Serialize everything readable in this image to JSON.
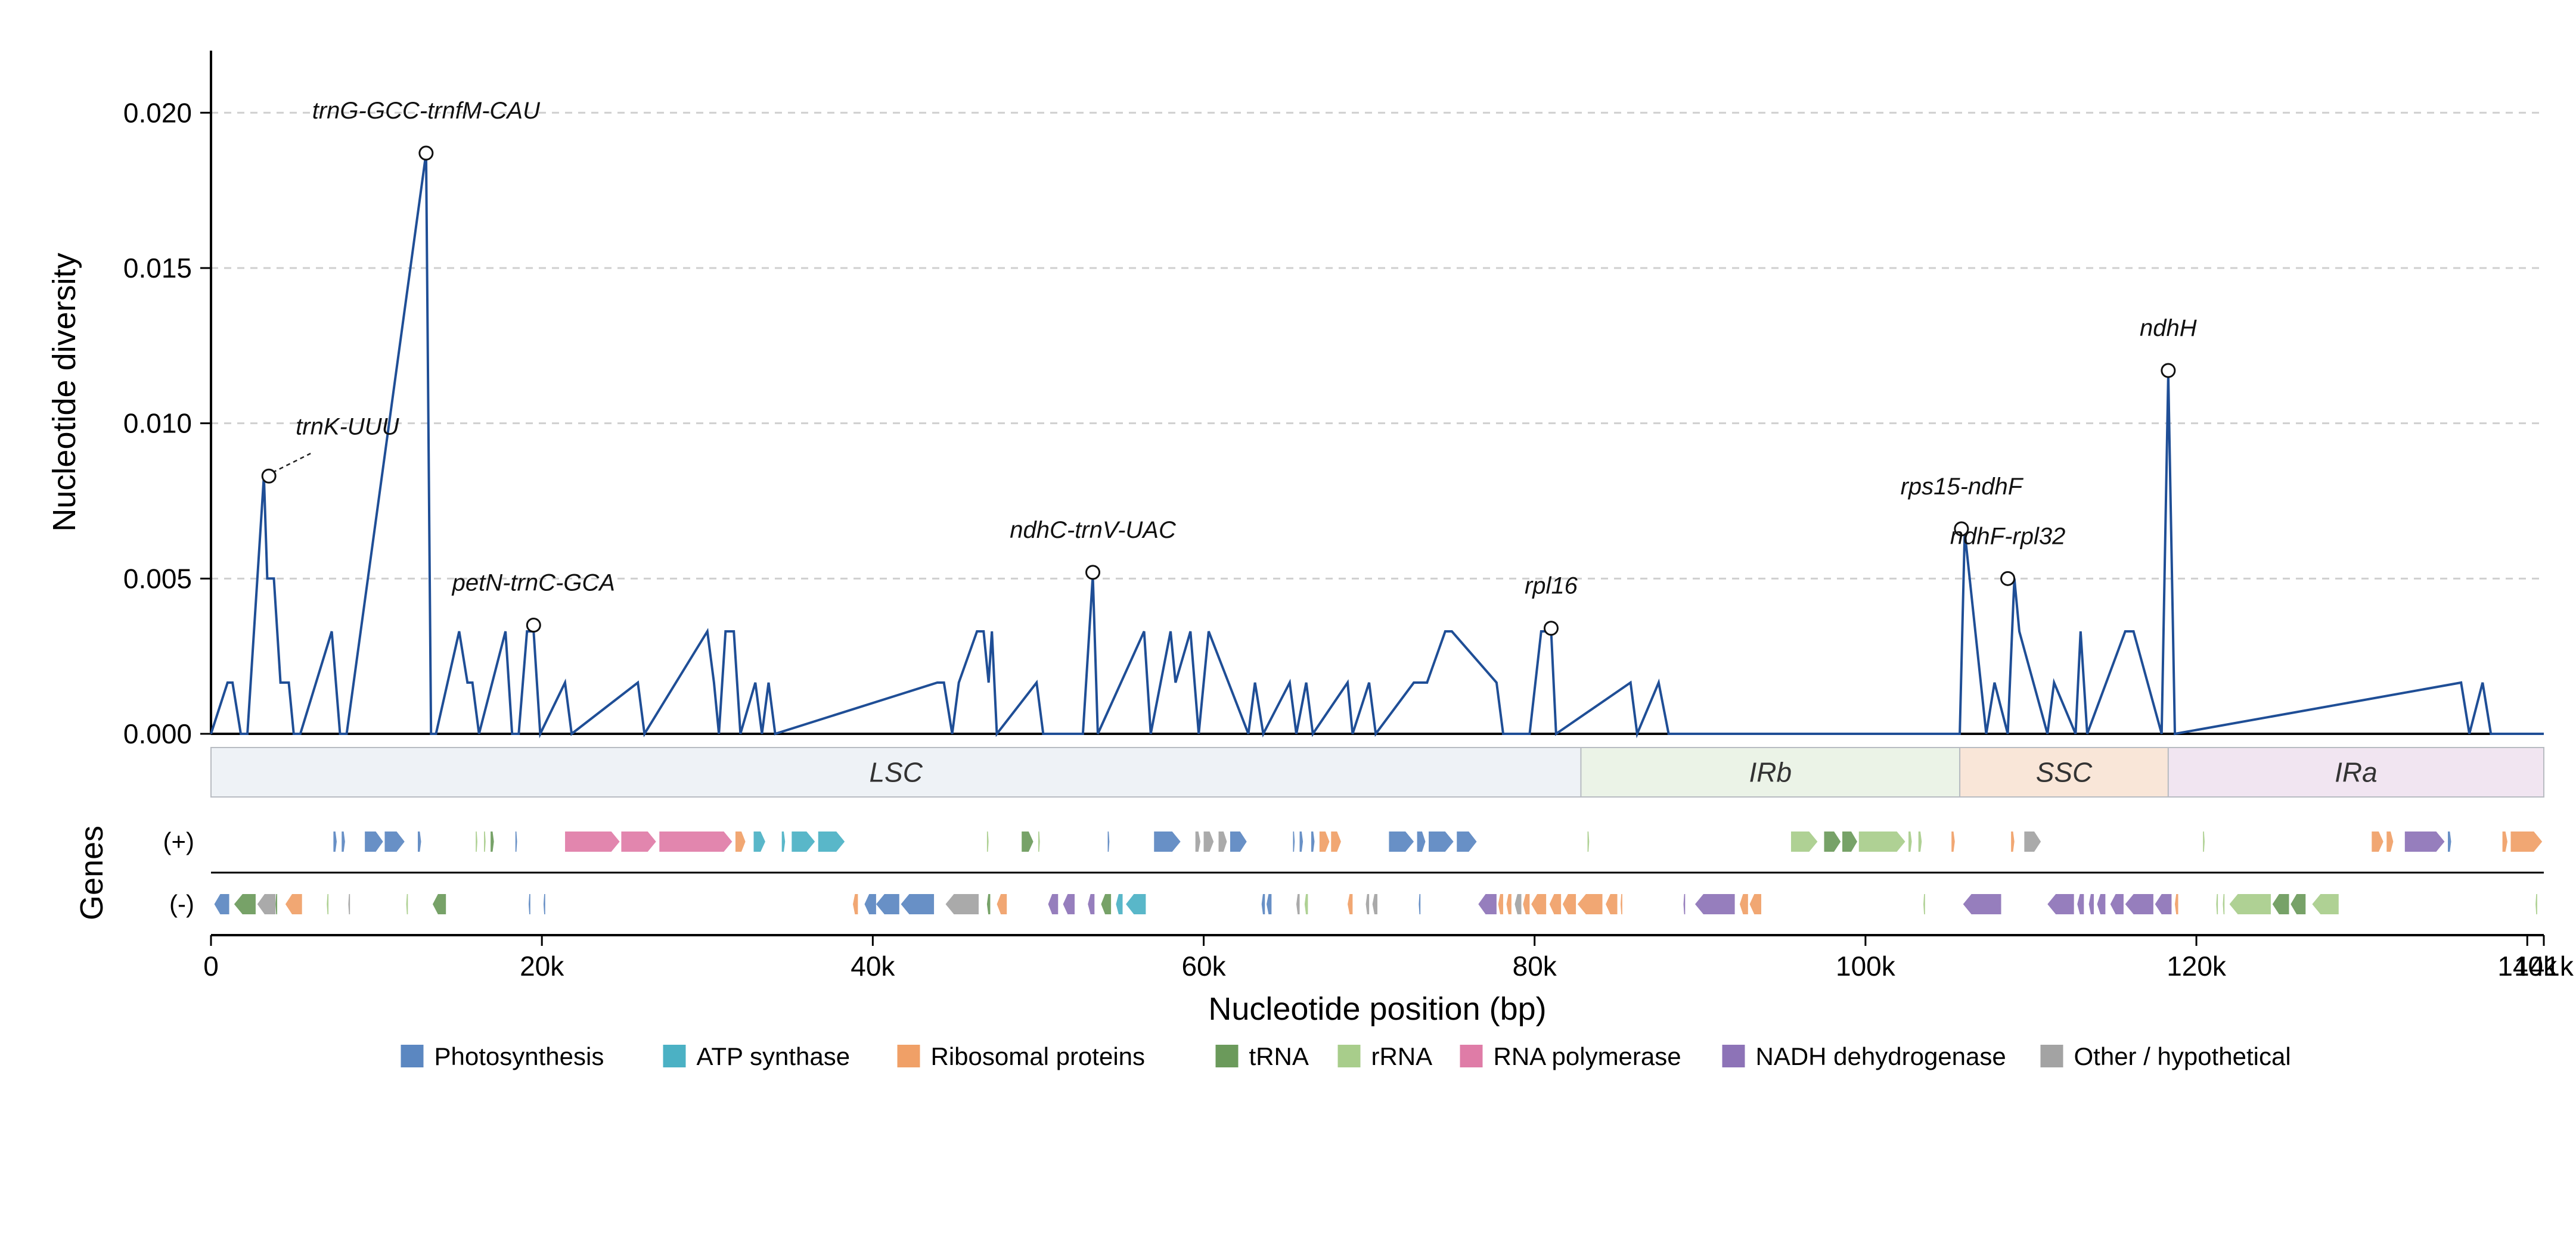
{
  "chart_data": {
    "type": "line",
    "ylabel": "Nucleotide diversity",
    "xlabel": "Nucleotide position (bp)",
    "ylim": [
      0,
      0.022
    ],
    "xlim": [
      0,
      141000
    ],
    "grid": "horizontal dashed",
    "yticks": [
      {
        "value": 0.0,
        "label": "0.000"
      },
      {
        "value": 0.005,
        "label": "0.005"
      },
      {
        "value": 0.01,
        "label": "0.010"
      },
      {
        "value": 0.015,
        "label": "0.015"
      },
      {
        "value": 0.02,
        "label": "0.020"
      }
    ],
    "xticks": [
      {
        "value": 0,
        "label": "0"
      },
      {
        "value": 20000,
        "label": "20k"
      },
      {
        "value": 40000,
        "label": "40k"
      },
      {
        "value": 60000,
        "label": "60k"
      },
      {
        "value": 80000,
        "label": "80k"
      },
      {
        "value": 100000,
        "label": "100k"
      },
      {
        "value": 120000,
        "label": "120k"
      },
      {
        "value": 140000,
        "label": "140k"
      },
      {
        "value": 141000,
        "label": "141k"
      }
    ],
    "series": [
      {
        "color": "#1f4e96",
        "window_positions": [
          0,
          1000,
          1300,
          1800,
          2200,
          3200,
          3400,
          3800,
          4200,
          4700,
          5000,
          5400,
          7300,
          7800,
          8200,
          13000,
          13300,
          13600,
          15000,
          15500,
          15800,
          16200,
          17800,
          18200,
          18600,
          19100,
          19500,
          19900,
          21400,
          21800,
          25800,
          26200,
          30000,
          30400,
          30700,
          31100,
          31600,
          32000,
          32900,
          33300,
          33700,
          34100,
          43900,
          44300,
          44800,
          45200,
          46300,
          46700,
          47000,
          47200,
          47500,
          49900,
          50300,
          52700,
          53300,
          53600,
          56400,
          56800,
          58000,
          58300,
          59200,
          59700,
          60300,
          62700,
          63100,
          63600,
          65200,
          65600,
          66200,
          66600,
          68700,
          69000,
          70000,
          70400,
          72700,
          73200,
          73500,
          74600,
          75000,
          77700,
          78100,
          79700,
          80400,
          81000,
          81300,
          85800,
          86200,
          87500,
          88100,
          105700,
          106000,
          107300,
          107800,
          108600,
          109000,
          109300,
          111000,
          111400,
          112700,
          113000,
          113400,
          115700,
          116200,
          117900,
          118300,
          118700,
          136000,
          136500,
          137300,
          137800,
          141000
        ],
        "values": [
          0.0,
          0.00165,
          0.00165,
          0.0,
          0.0,
          0.0083,
          0.005,
          0.005,
          0.00165,
          0.00165,
          0.0,
          0.0,
          0.0033,
          0.0,
          0.0,
          0.0187,
          0.0,
          0.0,
          0.0033,
          0.00165,
          0.00165,
          0.0,
          0.0033,
          0.0,
          0.0,
          0.0033,
          0.0033,
          0.0,
          0.00165,
          0.0,
          0.00165,
          0.0,
          0.0033,
          0.00165,
          0.0,
          0.0033,
          0.0033,
          0.0,
          0.00165,
          0.0,
          0.00165,
          0.0,
          0.00165,
          0.00165,
          0.0,
          0.00165,
          0.0033,
          0.0033,
          0.00165,
          0.0033,
          0.0,
          0.00165,
          0.0,
          0.0,
          0.0051,
          0.0,
          0.0033,
          0.0,
          0.0033,
          0.00165,
          0.0033,
          0.0,
          0.0033,
          0.0,
          0.00165,
          0.0,
          0.00165,
          0.0,
          0.00165,
          0.0,
          0.00165,
          0.0,
          0.00165,
          0.0,
          0.00165,
          0.00165,
          0.00165,
          0.0033,
          0.0033,
          0.00165,
          0.0,
          0.0,
          0.0033,
          0.0033,
          0.0,
          0.00165,
          0.0,
          0.00165,
          0.0,
          0.0,
          0.0065,
          0.0,
          0.00165,
          0.0,
          0.005,
          0.0033,
          0.0,
          0.00165,
          0.0,
          0.0033,
          0.0,
          0.0033,
          0.0033,
          0.0,
          0.0116,
          0.0,
          0.00165,
          0.0,
          0.00165,
          0.0,
          0.0
        ]
      }
    ],
    "annotations": [
      {
        "label": "trnK-UUU",
        "x": 3500,
        "y": 0.0083,
        "dashed_leader": true
      },
      {
        "label": "trnG-GCC-trnfM-CAU",
        "x": 13000,
        "y": 0.0187
      },
      {
        "label": "petN-trnC-GCA",
        "x": 19500,
        "y": 0.0035
      },
      {
        "label": "ndhC-trnV-UAC",
        "x": 53300,
        "y": 0.0052
      },
      {
        "label": "rpl16",
        "x": 81000,
        "y": 0.0034
      },
      {
        "label": "rps15-ndhF",
        "x": 105800,
        "y": 0.0066
      },
      {
        "label": "ndhF-rpl32",
        "x": 108600,
        "y": 0.005
      },
      {
        "label": "ndhH",
        "x": 118300,
        "y": 0.0117
      }
    ],
    "regions": [
      {
        "label": "LSC",
        "start": 0,
        "end": 82800,
        "color": "#eef2f6"
      },
      {
        "label": "IRb",
        "start": 82800,
        "end": 105700,
        "color": "#ebf3e7"
      },
      {
        "label": "SSC",
        "start": 105700,
        "end": 118300,
        "color": "#f9e6d8"
      },
      {
        "label": "IRa",
        "start": 118300,
        "end": 141000,
        "color": "#f1e5f1"
      }
    ],
    "genes_track": {
      "title": "Genes",
      "strand_labels": {
        "plus": "(+)",
        "minus": "(-)"
      },
      "plus": [
        {
          "s": 7400,
          "e": 7600,
          "c": "photo"
        },
        {
          "s": 7900,
          "e": 8100,
          "c": "photo"
        },
        {
          "s": 9300,
          "e": 10400,
          "c": "photo"
        },
        {
          "s": 10500,
          "e": 11700,
          "c": "photo"
        },
        {
          "s": 12500,
          "e": 12700,
          "c": "photo"
        },
        {
          "s": 16000,
          "e": 16100,
          "c": "rrna"
        },
        {
          "s": 16500,
          "e": 16600,
          "c": "rrna"
        },
        {
          "s": 16900,
          "e": 17100,
          "c": "trna"
        },
        {
          "s": 18400,
          "e": 18500,
          "c": "photo"
        },
        {
          "s": 21400,
          "e": 24700,
          "c": "rnap"
        },
        {
          "s": 24800,
          "e": 26900,
          "c": "rnap"
        },
        {
          "s": 27100,
          "e": 31500,
          "c": "rnap"
        },
        {
          "s": 31700,
          "e": 32300,
          "c": "ribo"
        },
        {
          "s": 32800,
          "e": 33500,
          "c": "atp"
        },
        {
          "s": 34500,
          "e": 34700,
          "c": "atp"
        },
        {
          "s": 35100,
          "e": 36500,
          "c": "atp"
        },
        {
          "s": 36700,
          "e": 38300,
          "c": "atp"
        },
        {
          "s": 46900,
          "e": 47000,
          "c": "rrna"
        },
        {
          "s": 49000,
          "e": 49700,
          "c": "trna"
        },
        {
          "s": 50000,
          "e": 50100,
          "c": "rrna"
        },
        {
          "s": 54200,
          "e": 54300,
          "c": "photo"
        },
        {
          "s": 57000,
          "e": 58600,
          "c": "photo"
        },
        {
          "s": 59500,
          "e": 59800,
          "c": "other"
        },
        {
          "s": 60000,
          "e": 60600,
          "c": "other"
        },
        {
          "s": 60900,
          "e": 61400,
          "c": "other"
        },
        {
          "s": 61600,
          "e": 62600,
          "c": "photo"
        },
        {
          "s": 65400,
          "e": 65500,
          "c": "photo"
        },
        {
          "s": 65800,
          "e": 66000,
          "c": "photo"
        },
        {
          "s": 66500,
          "e": 66700,
          "c": "photo"
        },
        {
          "s": 67000,
          "e": 67600,
          "c": "ribo"
        },
        {
          "s": 67700,
          "e": 68300,
          "c": "ribo"
        },
        {
          "s": 71200,
          "e": 72700,
          "c": "photo"
        },
        {
          "s": 72900,
          "e": 73400,
          "c": "photo"
        },
        {
          "s": 73600,
          "e": 75100,
          "c": "photo"
        },
        {
          "s": 75300,
          "e": 76500,
          "c": "photo"
        },
        {
          "s": 83200,
          "e": 83300,
          "c": "rrna"
        },
        {
          "s": 95500,
          "e": 97100,
          "c": "rrna"
        },
        {
          "s": 97500,
          "e": 98500,
          "c": "trna"
        },
        {
          "s": 98600,
          "e": 99500,
          "c": "trna"
        },
        {
          "s": 99600,
          "e": 102400,
          "c": "rrna"
        },
        {
          "s": 102600,
          "e": 102800,
          "c": "rrna"
        },
        {
          "s": 103200,
          "e": 103400,
          "c": "rrna"
        },
        {
          "s": 105200,
          "e": 105400,
          "c": "ribo"
        },
        {
          "s": 108800,
          "e": 109000,
          "c": "ribo"
        },
        {
          "s": 109600,
          "e": 110600,
          "c": "other"
        },
        {
          "s": 120400,
          "e": 120500,
          "c": "rrna"
        },
        {
          "s": 130600,
          "e": 131300,
          "c": "ribo"
        },
        {
          "s": 131500,
          "e": 131900,
          "c": "ribo"
        },
        {
          "s": 132600,
          "e": 135000,
          "c": "nadh"
        },
        {
          "s": 135200,
          "e": 135400,
          "c": "photo"
        },
        {
          "s": 138500,
          "e": 138800,
          "c": "ribo"
        },
        {
          "s": 139000,
          "e": 140900,
          "c": "ribo"
        }
      ],
      "minus": [
        {
          "s": 200,
          "e": 1100,
          "c": "photo"
        },
        {
          "s": 1400,
          "e": 2700,
          "c": "trna"
        },
        {
          "s": 2800,
          "e": 3900,
          "c": "other"
        },
        {
          "s": 3900,
          "e": 4000,
          "c": "trna"
        },
        {
          "s": 4500,
          "e": 5500,
          "c": "ribo"
        },
        {
          "s": 7000,
          "e": 7100,
          "c": "rrna"
        },
        {
          "s": 8300,
          "e": 8400,
          "c": "other"
        },
        {
          "s": 11800,
          "e": 11900,
          "c": "rrna"
        },
        {
          "s": 13400,
          "e": 14200,
          "c": "trna"
        },
        {
          "s": 19200,
          "e": 19300,
          "c": "photo"
        },
        {
          "s": 20100,
          "e": 20200,
          "c": "photo"
        },
        {
          "s": 38800,
          "e": 39100,
          "c": "ribo"
        },
        {
          "s": 39500,
          "e": 40200,
          "c": "photo"
        },
        {
          "s": 40200,
          "e": 41600,
          "c": "photo"
        },
        {
          "s": 41700,
          "e": 43700,
          "c": "photo"
        },
        {
          "s": 44400,
          "e": 46400,
          "c": "other"
        },
        {
          "s": 46900,
          "e": 47100,
          "c": "trna"
        },
        {
          "s": 47500,
          "e": 48100,
          "c": "ribo"
        },
        {
          "s": 50600,
          "e": 51200,
          "c": "nadh"
        },
        {
          "s": 51500,
          "e": 52200,
          "c": "nadh"
        },
        {
          "s": 53000,
          "e": 53400,
          "c": "nadh"
        },
        {
          "s": 53800,
          "e": 54400,
          "c": "trna"
        },
        {
          "s": 54700,
          "e": 55100,
          "c": "atp"
        },
        {
          "s": 55300,
          "e": 56500,
          "c": "atp"
        },
        {
          "s": 63500,
          "e": 63700,
          "c": "photo"
        },
        {
          "s": 63800,
          "e": 64100,
          "c": "photo"
        },
        {
          "s": 65600,
          "e": 65800,
          "c": "other"
        },
        {
          "s": 66100,
          "e": 66300,
          "c": "rrna"
        },
        {
          "s": 68700,
          "e": 69000,
          "c": "ribo"
        },
        {
          "s": 69800,
          "e": 70000,
          "c": "other"
        },
        {
          "s": 70200,
          "e": 70500,
          "c": "other"
        },
        {
          "s": 73000,
          "e": 73100,
          "c": "photo"
        },
        {
          "s": 76600,
          "e": 77700,
          "c": "nadh"
        },
        {
          "s": 77800,
          "e": 78100,
          "c": "ribo"
        },
        {
          "s": 78300,
          "e": 78600,
          "c": "ribo"
        },
        {
          "s": 78800,
          "e": 79200,
          "c": "other"
        },
        {
          "s": 79300,
          "e": 79700,
          "c": "ribo"
        },
        {
          "s": 79800,
          "e": 80700,
          "c": "ribo"
        },
        {
          "s": 80900,
          "e": 81600,
          "c": "ribo"
        },
        {
          "s": 81700,
          "e": 82500,
          "c": "ribo"
        },
        {
          "s": 82600,
          "e": 84100,
          "c": "ribo"
        },
        {
          "s": 84300,
          "e": 85000,
          "c": "ribo"
        },
        {
          "s": 85200,
          "e": 85300,
          "c": "ribo"
        },
        {
          "s": 89000,
          "e": 89100,
          "c": "nadh"
        },
        {
          "s": 89700,
          "e": 92100,
          "c": "nadh"
        },
        {
          "s": 92400,
          "e": 92900,
          "c": "ribo"
        },
        {
          "s": 93000,
          "e": 93700,
          "c": "ribo"
        },
        {
          "s": 103500,
          "e": 103600,
          "c": "rrna"
        },
        {
          "s": 105900,
          "e": 108200,
          "c": "nadh"
        },
        {
          "s": 111000,
          "e": 112600,
          "c": "nadh"
        },
        {
          "s": 112800,
          "e": 113200,
          "c": "nadh"
        },
        {
          "s": 113500,
          "e": 113800,
          "c": "nadh"
        },
        {
          "s": 114000,
          "e": 114500,
          "c": "nadh"
        },
        {
          "s": 114800,
          "e": 115600,
          "c": "nadh"
        },
        {
          "s": 115700,
          "e": 117400,
          "c": "nadh"
        },
        {
          "s": 117500,
          "e": 118500,
          "c": "nadh"
        },
        {
          "s": 118700,
          "e": 118900,
          "c": "ribo"
        },
        {
          "s": 121200,
          "e": 121300,
          "c": "rrna"
        },
        {
          "s": 121600,
          "e": 121700,
          "c": "rrna"
        },
        {
          "s": 122000,
          "e": 124500,
          "c": "rrna"
        },
        {
          "s": 124600,
          "e": 125600,
          "c": "trna"
        },
        {
          "s": 125700,
          "e": 126600,
          "c": "trna"
        },
        {
          "s": 127000,
          "e": 128600,
          "c": "rrna"
        },
        {
          "s": 140500,
          "e": 140600,
          "c": "rrna"
        }
      ]
    },
    "legend": {
      "position": "bottom-center",
      "items": [
        {
          "key": "photo",
          "label": "Photosynthesis",
          "color": "#5b87c1"
        },
        {
          "key": "atp",
          "label": "ATP synthase",
          "color": "#4bb1c4"
        },
        {
          "key": "ribo",
          "label": "Ribosomal proteins",
          "color": "#f0a067"
        },
        {
          "key": "trna",
          "label": "tRNA",
          "color": "#6b9a5b"
        },
        {
          "key": "rrna",
          "label": "rRNA",
          "color": "#a8cd8b"
        },
        {
          "key": "rnap",
          "label": "RNA polymerase",
          "color": "#df7ca7"
        },
        {
          "key": "nadh",
          "label": "NADH dehydrogenase",
          "color": "#8d73b7"
        },
        {
          "key": "other",
          "label": "Other / hypothetical",
          "color": "#a3a3a3"
        }
      ]
    }
  }
}
